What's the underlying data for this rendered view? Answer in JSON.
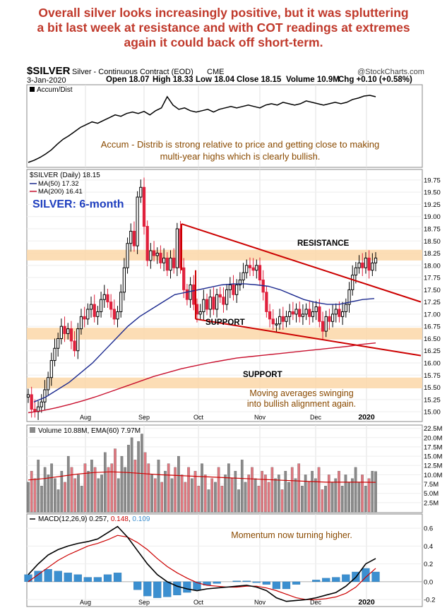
{
  "headline": [
    "Overall silver looks increasingly positive, but it was spluttering",
    "a bit last week at resistance and with COT readings at extremes",
    "again it could back off short-term."
  ],
  "header": {
    "symbol": "$SILVER",
    "name": "Silver - Continuous Contract (EOD)",
    "exchange": "CME",
    "source": "@StockCharts.com",
    "date": "3-Jan-2020",
    "open": "Open 18.07",
    "high": "High 18.33",
    "low": "Low 18.04",
    "close": "Close 18.15",
    "volume": "Volume 10.9M",
    "change": "Chg +0.10 (+0.58%)",
    "change_arrow": "up-triangle-icon"
  },
  "colors": {
    "up_candle": "#000000",
    "down_candle": "#e0203c",
    "ma50": "#1c2a8f",
    "ma200": "#c8102e",
    "trendline": "#cc0000",
    "zone": "#fbd7a8",
    "annotation": "#8a4a00",
    "label_blue": "#1f3fbf",
    "volume_up": "#8a8a8a",
    "volume_down": "#e07880",
    "ema": "#cc0000",
    "macd_hist": "#3b8fd0",
    "macd_signal": "#cc0000"
  },
  "chart_data": [
    {
      "type": "line",
      "panel": "accum-dist",
      "legend": "Accum/Dist",
      "annotation": "Accum - Distrib is strong relative to price and getting close to making multi-year highs which is clearly bullish.",
      "x_ticks": [
        "Aug",
        "Sep",
        "Oct",
        "Nov",
        "Dec",
        "2020"
      ],
      "values": [
        2,
        5,
        9,
        14,
        20,
        28,
        35,
        40,
        46,
        52,
        56,
        60,
        58,
        62,
        66,
        70,
        68,
        72,
        74,
        72,
        75,
        70,
        76,
        80,
        96,
        84,
        78,
        80,
        76,
        74,
        76,
        78,
        74,
        78,
        80,
        82,
        80,
        82,
        84,
        82,
        80,
        84,
        86,
        84,
        88,
        86,
        84,
        86,
        90,
        88,
        86,
        84,
        86,
        88,
        86,
        88,
        92,
        94,
        97,
        98,
        96
      ]
    },
    {
      "type": "candlestick",
      "panel": "price",
      "legend_symbol": "$SILVER (Daily) 18.15",
      "panel_title": "SILVER: 6-month",
      "x_ticks": [
        "Aug",
        "Sep",
        "Oct",
        "Nov",
        "Dec",
        "2020"
      ],
      "y_ticks": [
        "19.75",
        "19.50",
        "19.25",
        "19.00",
        "18.75",
        "18.50",
        "18.25",
        "18.00",
        "17.75",
        "17.50",
        "17.25",
        "17.00",
        "16.75",
        "16.50",
        "16.25",
        "16.00",
        "15.75",
        "15.50",
        "15.25",
        "15.00"
      ],
      "ylim": [
        14.9,
        19.85
      ],
      "closes": [
        15.35,
        15.05,
        15.0,
        15.1,
        15.2,
        15.45,
        15.7,
        16.05,
        16.3,
        16.5,
        16.75,
        16.6,
        16.7,
        16.45,
        16.25,
        16.7,
        16.95,
        16.9,
        17.1,
        17.2,
        16.95,
        17.05,
        17.3,
        17.4,
        17.25,
        17.1,
        16.9,
        17.05,
        17.45,
        17.95,
        18.45,
        18.7,
        18.4,
        19.4,
        19.6,
        18.8,
        18.1,
        18.3,
        18.2,
        18.25,
        18.05,
        18.15,
        17.9,
        18.15,
        17.95,
        18.75,
        17.95,
        17.5,
        17.3,
        17.6,
        17.2,
        17.0,
        17.05,
        17.3,
        17.1,
        17.35,
        17.1,
        17.4,
        17.35,
        17.2,
        17.5,
        17.6,
        17.4,
        17.6,
        17.7,
        17.85,
        18.0,
        17.95,
        17.9,
        18.0,
        17.7,
        17.45,
        17.05,
        16.9,
        16.8,
        16.8,
        16.95,
        16.85,
        16.95,
        17.05,
        17.0,
        17.1,
        16.95,
        17.0,
        17.1,
        16.95,
        17.05,
        17.15,
        16.85,
        16.65,
        16.95,
        16.85,
        17.0,
        17.1,
        16.95,
        17.05,
        17.2,
        17.5,
        17.8,
        17.95,
        18.05,
        17.95,
        18.15,
        17.9,
        18.05,
        18.15
      ],
      "ma50_label": "MA(50) 17.32",
      "ma50": [
        15.2,
        15.3,
        15.45,
        15.6,
        15.8,
        16.0,
        16.25,
        16.5,
        16.75,
        16.95,
        17.1,
        17.25,
        17.4,
        17.45,
        17.5,
        17.55,
        17.6,
        17.62,
        17.62,
        17.6,
        17.57,
        17.5,
        17.4,
        17.3,
        17.24,
        17.2,
        17.2,
        17.25,
        17.3,
        17.32
      ],
      "ma200_label": "MA(200) 16.41",
      "ma200": [
        14.98,
        15.02,
        15.08,
        15.15,
        15.23,
        15.32,
        15.42,
        15.52,
        15.62,
        15.72,
        15.8,
        15.88,
        15.94,
        16.0,
        16.05,
        16.1,
        16.13,
        16.16,
        16.19,
        16.22,
        16.25,
        16.28,
        16.31,
        16.34,
        16.38,
        16.41
      ],
      "zones": [
        {
          "label": "RESISTANCE",
          "from": 18.1,
          "to": 18.32
        },
        {
          "label": "SUPPORT",
          "from": 16.48,
          "to": 16.72
        },
        {
          "label": "SUPPORT",
          "from": 15.48,
          "to": 15.7
        }
      ],
      "trendlines": [
        {
          "name": "upper",
          "from": [
            "Sep",
            18.85
          ],
          "to": [
            "2020+",
            17.25
          ]
        },
        {
          "name": "lower",
          "from": [
            "Sep",
            16.9
          ],
          "to": [
            "2020+",
            16.15
          ]
        }
      ],
      "annotation_lines": [
        "Moving averages swinging",
        "into bullish alignment again."
      ]
    },
    {
      "type": "bar",
      "panel": "volume",
      "legend": "Volume 10.88M, EMA(60) 7.97M",
      "y_ticks": [
        "22.5M",
        "20.0M",
        "17.5M",
        "15.0M",
        "12.5M",
        "10.0M",
        "7.5M",
        "5.0M",
        "2.5M"
      ],
      "ylim": [
        0,
        23
      ],
      "values": [
        8,
        11,
        9,
        14,
        7,
        12,
        10,
        13,
        9,
        6,
        11,
        8,
        15,
        12,
        9,
        10,
        7,
        13,
        11,
        14,
        12,
        9,
        10,
        16,
        12,
        13,
        17,
        9,
        15,
        12,
        18,
        20,
        14,
        19,
        21,
        16,
        13,
        10,
        9,
        14,
        8,
        11,
        13,
        9,
        12,
        15,
        10,
        8,
        12,
        9,
        11,
        7,
        13,
        10,
        6,
        9,
        8,
        12,
        7,
        10,
        13,
        9,
        11,
        6,
        14,
        8,
        10,
        12,
        9,
        7,
        11,
        10,
        8,
        12,
        9,
        10,
        6,
        11,
        8,
        12,
        9,
        13,
        7,
        10,
        8,
        11,
        9,
        12,
        6,
        7,
        10,
        8,
        9,
        11,
        7,
        10,
        8,
        9,
        12,
        8,
        10,
        7,
        9,
        11,
        10.9
      ],
      "ema": [
        8.6,
        9.0,
        9.6,
        10.2,
        10.6,
        10.8,
        10.6,
        10.3,
        10.0,
        9.8,
        9.6,
        9.4,
        9.2,
        9.0,
        8.8,
        8.6,
        8.4,
        8.2,
        8.0,
        8.0,
        8.0,
        7.97
      ]
    },
    {
      "type": "line",
      "panel": "macd",
      "legend_prefix": "MACD(12,26,9) 0.257, ",
      "legend_signal": "0.148",
      "legend_sep": ", ",
      "legend_hist": "0.109",
      "annotation": "Momentum now turning higher.",
      "x_ticks": [
        "Aug",
        "Sep",
        "Oct",
        "Nov",
        "Dec",
        "2020"
      ],
      "y_ticks": [
        "0.6",
        "0.4",
        "0.2",
        "0.0",
        "-0.2"
      ],
      "ylim": [
        -0.27,
        0.68
      ],
      "macd": [
        0.08,
        0.2,
        0.3,
        0.36,
        0.4,
        0.43,
        0.45,
        0.48,
        0.55,
        0.62,
        0.5,
        0.35,
        0.2,
        0.08,
        0.0,
        -0.05,
        -0.08,
        -0.1,
        -0.08,
        -0.07,
        -0.06,
        -0.05,
        -0.04,
        -0.06,
        -0.1,
        -0.18,
        -0.22,
        -0.21,
        -0.2,
        -0.18,
        -0.15,
        -0.12,
        -0.05,
        0.05,
        0.2,
        0.26
      ],
      "signal": [
        0.0,
        0.08,
        0.16,
        0.24,
        0.3,
        0.35,
        0.4,
        0.43,
        0.47,
        0.52,
        0.5,
        0.44,
        0.36,
        0.26,
        0.17,
        0.1,
        0.04,
        -0.01,
        -0.04,
        -0.05,
        -0.06,
        -0.06,
        -0.05,
        -0.05,
        -0.07,
        -0.1,
        -0.14,
        -0.18,
        -0.2,
        -0.2,
        -0.19,
        -0.17,
        -0.13,
        -0.06,
        0.05,
        0.15
      ],
      "histogram": [
        0.08,
        0.12,
        0.14,
        0.12,
        0.1,
        0.08,
        0.05,
        0.05,
        0.08,
        0.1,
        0.0,
        -0.09,
        -0.16,
        -0.18,
        -0.17,
        -0.15,
        -0.12,
        -0.09,
        -0.04,
        -0.02,
        0.0,
        0.01,
        0.01,
        -0.01,
        -0.03,
        -0.08,
        -0.08,
        -0.03,
        0.0,
        0.02,
        0.04,
        0.05,
        0.08,
        0.11,
        0.15,
        0.11
      ]
    }
  ]
}
